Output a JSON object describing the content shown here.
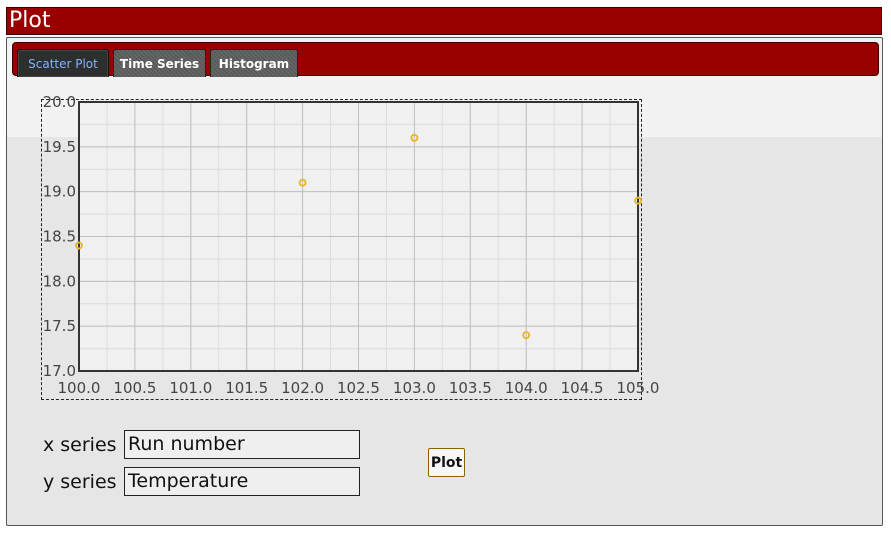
{
  "window": {
    "title": "Plot"
  },
  "tabs": [
    {
      "label": "Scatter Plot",
      "active": true
    },
    {
      "label": "Time Series",
      "active": false
    },
    {
      "label": "Histogram",
      "active": false
    }
  ],
  "form": {
    "x_label": "x series",
    "x_value": "Run number",
    "y_label": "y series",
    "y_value": "Temperature",
    "plot_button": "Plot"
  },
  "colors": {
    "title_bar": "#990000",
    "point": "#e8b830",
    "active_tab_text": "#7fb6ff"
  },
  "chart_data": {
    "type": "scatter",
    "x": [
      100,
      102,
      103,
      104,
      105
    ],
    "y": [
      18.4,
      19.1,
      19.6,
      17.4,
      18.9
    ],
    "xlim": [
      100.0,
      105.0
    ],
    "ylim": [
      17.0,
      20.0
    ],
    "xticks": [
      "100.0",
      "100.5",
      "101.0",
      "101.5",
      "102.0",
      "102.5",
      "103.0",
      "103.5",
      "104.0",
      "104.5",
      "105.0"
    ],
    "yticks": [
      "17.0",
      "17.5",
      "18.0",
      "18.5",
      "19.0",
      "19.5",
      "20.0"
    ],
    "grid": true
  }
}
